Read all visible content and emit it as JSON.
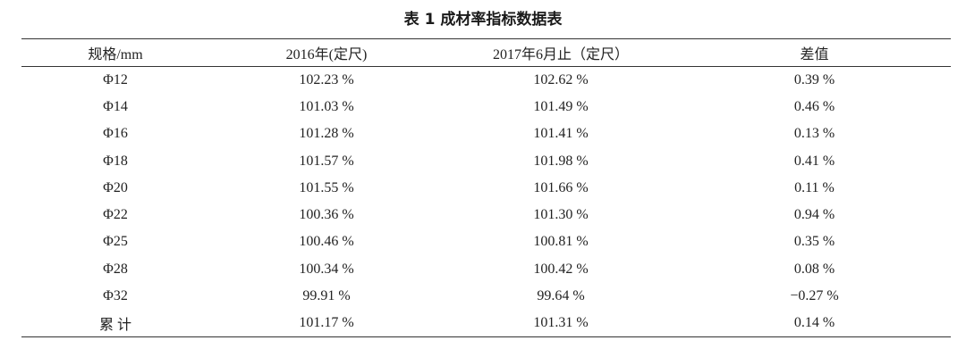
{
  "title": "表 1  成材率指标数据表",
  "columns": [
    "规格/mm",
    "2016年(定尺)",
    "2017年6月止（定尺）",
    "差值"
  ],
  "rows": [
    [
      "Φ12",
      "102.23 %",
      "102.62 %",
      "0.39 %"
    ],
    [
      "Φ14",
      "101.03 %",
      "101.49 %",
      "0.46 %"
    ],
    [
      "Φ16",
      "101.28 %",
      "101.41 %",
      "0.13 %"
    ],
    [
      "Φ18",
      "101.57 %",
      "101.98 %",
      "0.41 %"
    ],
    [
      "Φ20",
      "101.55 %",
      "101.66 %",
      "0.11 %"
    ],
    [
      "Φ22",
      "100.36 %",
      "101.30 %",
      "0.94 %"
    ],
    [
      "Φ25",
      "100.46 %",
      "100.81 %",
      "0.35 %"
    ],
    [
      "Φ28",
      "100.34 %",
      "100.42 %",
      "0.08 %"
    ],
    [
      "Φ32",
      "99.91 %",
      "99.64 %",
      "−0.27 %"
    ],
    [
      "累 计",
      "101.17 %",
      "101.31 %",
      "0.14 %"
    ]
  ]
}
